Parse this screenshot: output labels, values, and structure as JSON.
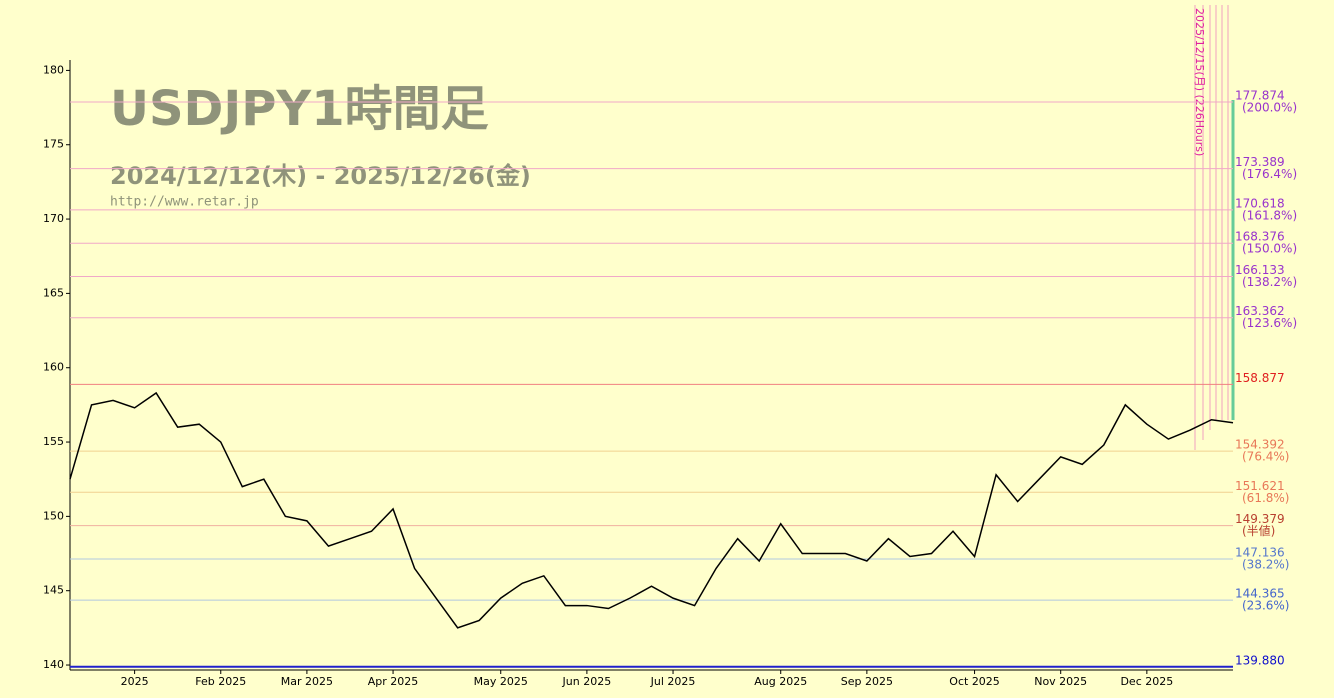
{
  "chart_data": {
    "type": "line",
    "title": "USDJPY1時間足",
    "subtitle": "2024/12/12(木) - 2025/12/26(金)",
    "source": "http://www.retar.jp",
    "categories": [
      null,
      null,
      null,
      "2025",
      null,
      null,
      null,
      "Feb 2025",
      null,
      null,
      null,
      "Mar 2025",
      null,
      null,
      null,
      "Apr 2025",
      null,
      null,
      null,
      null,
      "May 2025",
      null,
      null,
      null,
      "Jun 2025",
      null,
      null,
      null,
      "Jul 2025",
      null,
      null,
      null,
      null,
      "Aug 2025",
      null,
      null,
      null,
      "Sep 2025",
      null,
      null,
      null,
      null,
      "Oct 2025",
      null,
      null,
      null,
      "Nov 2025",
      null,
      null,
      null,
      "Dec 2025",
      null,
      null,
      null,
      null
    ],
    "series": [
      {
        "name": "USDJPY",
        "color": "#000000",
        "values": [
          152.5,
          157.5,
          157.8,
          157.3,
          158.3,
          156.0,
          156.2,
          155.0,
          152.0,
          152.5,
          150.0,
          149.7,
          148.0,
          148.5,
          149.0,
          150.5,
          146.5,
          144.5,
          142.5,
          143.0,
          144.5,
          145.5,
          146.0,
          144.0,
          144.0,
          143.8,
          144.5,
          145.3,
          144.5,
          144.0,
          146.5,
          148.5,
          147.0,
          149.5,
          147.5,
          147.5,
          147.5,
          147.0,
          148.5,
          147.3,
          147.5,
          149.0,
          147.3,
          152.8,
          151.0,
          152.5,
          154.0,
          153.5,
          154.8,
          157.5,
          156.2,
          155.2,
          155.8,
          156.5,
          156.3
        ]
      }
    ],
    "ylim": [
      139.8,
      180.7
    ],
    "yticks": [
      140,
      145,
      150,
      155,
      160,
      165,
      170,
      175,
      180
    ],
    "levels": [
      {
        "value": 177.874,
        "label": "177.874",
        "ratio": "(200.0%)",
        "color": "#9933cc",
        "line": "#f0a8c8"
      },
      {
        "value": 173.389,
        "label": "173.389",
        "ratio": "(176.4%)",
        "color": "#9933cc",
        "line": "#f0a8c8"
      },
      {
        "value": 170.618,
        "label": "170.618",
        "ratio": "(161.8%)",
        "color": "#9933cc",
        "line": "#f0a8c8"
      },
      {
        "value": 168.376,
        "label": "168.376",
        "ratio": "(150.0%)",
        "color": "#9933cc",
        "line": "#f0a8c8"
      },
      {
        "value": 166.133,
        "label": "166.133",
        "ratio": "(138.2%)",
        "color": "#9933cc",
        "line": "#f0a8c8"
      },
      {
        "value": 163.362,
        "label": "163.362",
        "ratio": "(123.6%)",
        "color": "#9933cc",
        "line": "#f0a8c8"
      },
      {
        "value": 158.877,
        "label": "158.877",
        "ratio": null,
        "color": "#e02020",
        "line": "#f08080"
      },
      {
        "value": 154.392,
        "label": "154.392",
        "ratio": "(76.4%)",
        "color": "#e87858",
        "line": "#f0d090"
      },
      {
        "value": 151.621,
        "label": "151.621",
        "ratio": "(61.8%)",
        "color": "#e87858",
        "line": "#f0d090"
      },
      {
        "value": 149.379,
        "label": "149.379",
        "ratio": "(半値)",
        "color": "#b84030",
        "line": "#f0b0a0"
      },
      {
        "value": 147.136,
        "label": "147.136",
        "ratio": "(38.2%)",
        "color": "#5577cc",
        "line": "#b0c8e0"
      },
      {
        "value": 144.365,
        "label": "144.365",
        "ratio": "(23.6%)",
        "color": "#4466cc",
        "line": "#b0c8e0"
      },
      {
        "value": 139.88,
        "label": "139.880",
        "ratio": null,
        "color": "#1010cc",
        "line": "#2020cc"
      }
    ],
    "annotation": "2025/12/15(月) (226Hours)"
  }
}
